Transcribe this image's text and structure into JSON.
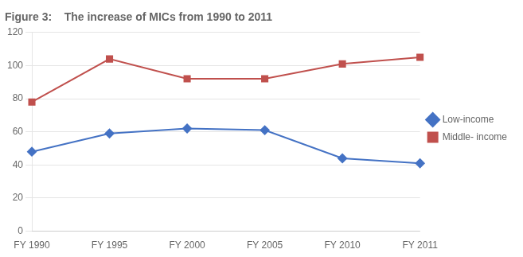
{
  "chart_data": {
    "type": "line",
    "title": "Figure 3:    The increase of MICs from 1990 to 2011",
    "categories": [
      "FY 1990",
      "FY 1995",
      "FY 2000",
      "FY 2005",
      "FY 2010",
      "FY 2011"
    ],
    "series": [
      {
        "name": "Low-income",
        "color": "#4472C4",
        "values": [
          48,
          59,
          62,
          61,
          44,
          41
        ],
        "marker": "diamond"
      },
      {
        "name": "Middle- income",
        "color": "#C0504D",
        "values": [
          78,
          104,
          92,
          92,
          101,
          105
        ],
        "marker": "square"
      }
    ],
    "ylim": [
      0,
      120
    ],
    "yticks": [
      0,
      20,
      40,
      60,
      80,
      100,
      120
    ],
    "grid": "y",
    "legend": "right"
  }
}
